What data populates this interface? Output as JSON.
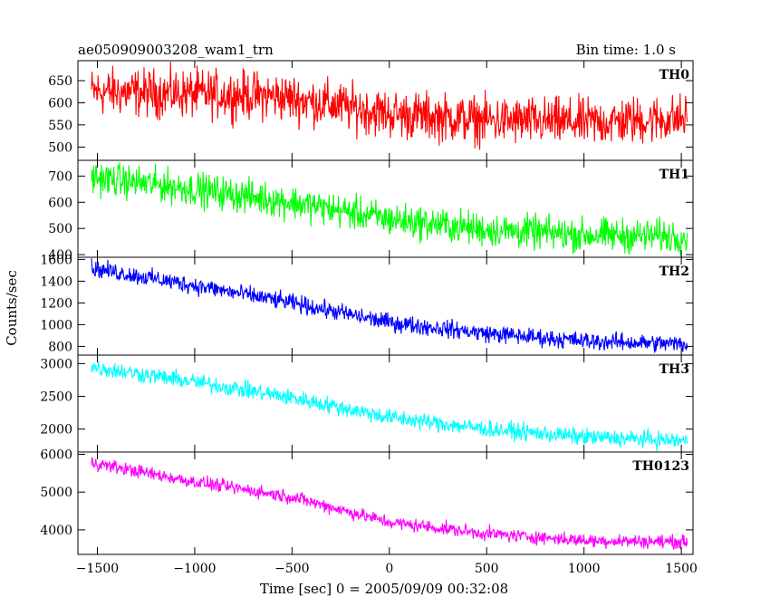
{
  "header": {
    "title": "ae050909003208_wam1_trn",
    "bin_time": "Bin time: 1.0 s"
  },
  "chart_data": {
    "type": "line",
    "title": "ae050909003208_wam1_trn",
    "subtitle": "Bin time: 1.0 s",
    "xlabel": "Time [sec] 0 = 2005/09/09 00:32:08",
    "ylabel": "Counts/sec",
    "xlim": [
      -1600,
      1560
    ],
    "x_ticks": [
      -1500,
      -1000,
      -500,
      0,
      500,
      1000,
      1500
    ],
    "x_tick_labels": [
      "−1500",
      "−1000",
      "−500",
      "0",
      "500",
      "1000",
      "1500"
    ],
    "data_x_range": [
      -1530,
      1530
    ],
    "grid": false,
    "legend": "none",
    "panels": [
      {
        "name": "TH0",
        "color": "#ff0000",
        "ylim": [
          470,
          695
        ],
        "y_ticks": [
          500,
          550,
          600,
          650
        ],
        "y_tick_labels": [
          "500",
          "550",
          "600",
          "650"
        ],
        "trend_x": [
          -1530,
          -1000,
          -600,
          -500,
          0,
          500,
          1000,
          1530
        ],
        "trend_y": [
          625,
          620,
          615,
          610,
          575,
          560,
          555,
          565
        ],
        "noise_amplitude": 80
      },
      {
        "name": "TH1",
        "color": "#00ff00",
        "ylim": [
          390,
          760
        ],
        "y_ticks": [
          400,
          500,
          600,
          700
        ],
        "y_tick_labels": [
          "400",
          "500",
          "600",
          "700"
        ],
        "trend_x": [
          -1530,
          -1000,
          -500,
          0,
          500,
          1000,
          1530
        ],
        "trend_y": [
          695,
          650,
          600,
          535,
          495,
          475,
          470
        ],
        "noise_amplitude": 95
      },
      {
        "name": "TH2",
        "color": "#0000ff",
        "ylim": [
          720,
          1620
        ],
        "y_ticks": [
          800,
          1000,
          1200,
          1400,
          1600
        ],
        "y_tick_labels": [
          "800",
          "1000",
          "1200",
          "1400",
          "1600"
        ],
        "trend_x": [
          -1530,
          -1000,
          -500,
          0,
          500,
          1000,
          1530
        ],
        "trend_y": [
          1520,
          1360,
          1200,
          1020,
          920,
          850,
          820
        ],
        "noise_amplitude": 120
      },
      {
        "name": "TH3",
        "color": "#00ffff",
        "ylim": [
          1650,
          3130
        ],
        "y_ticks": [
          2000,
          2500,
          3000
        ],
        "y_tick_labels": [
          "2000",
          "2500",
          "3000"
        ],
        "trend_x": [
          -1530,
          -1000,
          -500,
          0,
          500,
          1000,
          1530
        ],
        "trend_y": [
          2950,
          2720,
          2480,
          2180,
          2000,
          1880,
          1820
        ],
        "noise_amplitude": 190
      },
      {
        "name": "TH0123",
        "color": "#ff00ff",
        "ylim": [
          3350,
          6060
        ],
        "y_ticks": [
          4000,
          5000,
          6000
        ],
        "y_tick_labels": [
          "4000",
          "5000",
          "6000"
        ],
        "trend_x": [
          -1530,
          -1000,
          -500,
          0,
          500,
          1000,
          1530
        ],
        "trend_y": [
          5780,
          5270,
          4870,
          4200,
          3900,
          3720,
          3680
        ],
        "noise_amplitude": 260
      }
    ]
  }
}
